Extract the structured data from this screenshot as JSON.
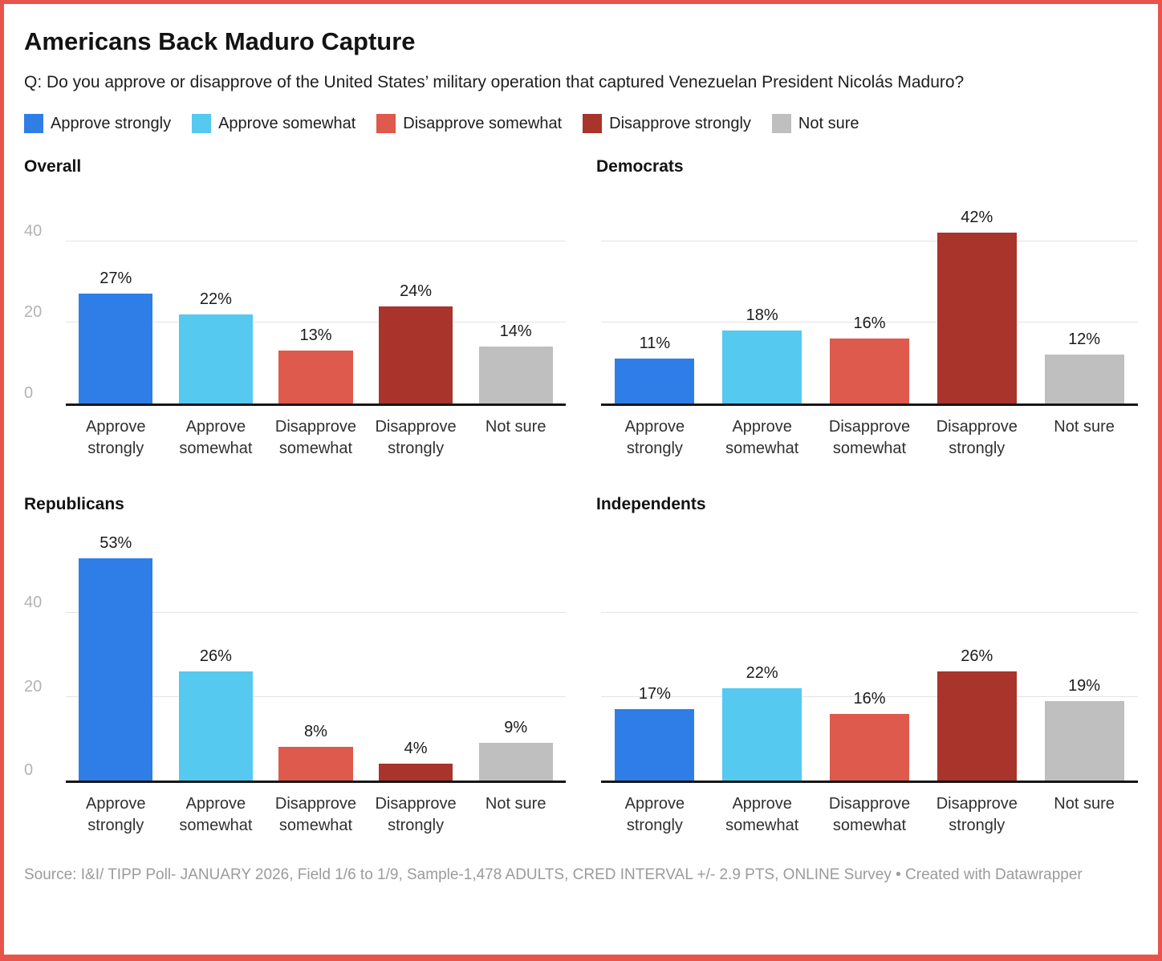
{
  "frame": {
    "border_color": "#E8544B",
    "background": "#FFFFFF"
  },
  "header": {
    "title": "Americans Back Maduro Capture",
    "subtitle": "Q: Do you approve or disapprove of the United States’ military operation that captured Venezuelan President Nicolás Maduro?"
  },
  "legend": {
    "items": [
      {
        "label": "Approve strongly",
        "color": "#2F7EE8"
      },
      {
        "label": "Approve somewhat",
        "color": "#55C9EF"
      },
      {
        "label": "Disapprove somewhat",
        "color": "#DD5A4C"
      },
      {
        "label": "Disapprove strongly",
        "color": "#A8342B"
      },
      {
        "label": "Not sure",
        "color": "#BFBFBF"
      }
    ]
  },
  "chart_data": [
    {
      "type": "bar",
      "title": "Overall",
      "categories": [
        "Approve strongly",
        "Approve somewhat",
        "Disapprove somewhat",
        "Disapprove strongly",
        "Not sure"
      ],
      "values": [
        27,
        22,
        13,
        24,
        14
      ],
      "unit": "%",
      "ylim": [
        0,
        43.5
      ],
      "yticks": [
        0,
        20,
        40
      ],
      "y_tick_labels_visible": true,
      "grid": true,
      "legend_position": "top-shared"
    },
    {
      "type": "bar",
      "title": "Democrats",
      "categories": [
        "Approve strongly",
        "Approve somewhat",
        "Disapprove somewhat",
        "Disapprove strongly",
        "Not sure"
      ],
      "values": [
        11,
        18,
        16,
        42,
        12
      ],
      "unit": "%",
      "ylim": [
        0,
        43.5
      ],
      "yticks": [
        0,
        20,
        40
      ],
      "y_tick_labels_visible": false,
      "grid": true,
      "legend_position": "top-shared"
    },
    {
      "type": "bar",
      "title": "Republicans",
      "categories": [
        "Approve strongly",
        "Approve somewhat",
        "Disapprove somewhat",
        "Disapprove strongly",
        "Not sure"
      ],
      "values": [
        53,
        26,
        8,
        4,
        9
      ],
      "unit": "%",
      "ylim": [
        0,
        54.5
      ],
      "yticks": [
        0,
        20,
        40
      ],
      "y_tick_labels_visible": true,
      "grid": true,
      "legend_position": "top-shared"
    },
    {
      "type": "bar",
      "title": "Independents",
      "categories": [
        "Approve strongly",
        "Approve somewhat",
        "Disapprove somewhat",
        "Disapprove strongly",
        "Not sure"
      ],
      "values": [
        17,
        22,
        16,
        26,
        19
      ],
      "unit": "%",
      "ylim": [
        0,
        54.5
      ],
      "yticks": [
        0,
        20,
        40
      ],
      "y_tick_labels_visible": false,
      "grid": true,
      "legend_position": "top-shared"
    }
  ],
  "footer": {
    "source": "Source: I&I/ TIPP Poll- JANUARY 2026, Field 1/6 to 1/9, Sample-1,478 ADULTS, CRED INTERVAL +/- 2.9 PTS, ONLINE Survey • Created with Datawrapper"
  }
}
